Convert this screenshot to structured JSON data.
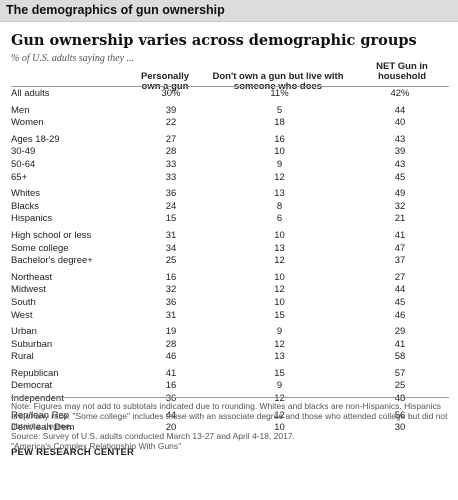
{
  "band_title": "The demographics of gun ownership",
  "headline": "Gun ownership varies across demographic groups",
  "subtitle": "% of U.S. adults saying they ...",
  "chart_data": {
    "type": "table",
    "columns": [
      "Personally own a gun",
      "Don't own a gun but live with someone who does",
      "NET Gun in household"
    ],
    "groups": [
      {
        "rows": [
          {
            "label": "All adults",
            "values": [
              "30%",
              "11%",
              "42%"
            ]
          }
        ]
      },
      {
        "rows": [
          {
            "label": "Men",
            "values": [
              "39",
              "5",
              "44"
            ]
          },
          {
            "label": "Women",
            "values": [
              "22",
              "18",
              "40"
            ]
          }
        ]
      },
      {
        "rows": [
          {
            "label": "Ages 18-29",
            "values": [
              "27",
              "16",
              "43"
            ]
          },
          {
            "label": "30-49",
            "values": [
              "28",
              "10",
              "39"
            ]
          },
          {
            "label": "50-64",
            "values": [
              "33",
              "9",
              "43"
            ]
          },
          {
            "label": "65+",
            "values": [
              "33",
              "12",
              "45"
            ]
          }
        ]
      },
      {
        "rows": [
          {
            "label": "Whites",
            "values": [
              "36",
              "13",
              "49"
            ]
          },
          {
            "label": "Blacks",
            "values": [
              "24",
              "8",
              "32"
            ]
          },
          {
            "label": "Hispanics",
            "values": [
              "15",
              "6",
              "21"
            ]
          }
        ]
      },
      {
        "rows": [
          {
            "label": "High school or less",
            "values": [
              "31",
              "10",
              "41"
            ]
          },
          {
            "label": "Some college",
            "values": [
              "34",
              "13",
              "47"
            ]
          },
          {
            "label": "Bachelor's degree+",
            "values": [
              "25",
              "12",
              "37"
            ]
          }
        ]
      },
      {
        "rows": [
          {
            "label": "Northeast",
            "values": [
              "16",
              "10",
              "27"
            ]
          },
          {
            "label": "Midwest",
            "values": [
              "32",
              "12",
              "44"
            ]
          },
          {
            "label": "South",
            "values": [
              "36",
              "10",
              "45"
            ]
          },
          {
            "label": "West",
            "values": [
              "31",
              "15",
              "46"
            ]
          }
        ]
      },
      {
        "rows": [
          {
            "label": "Urban",
            "values": [
              "19",
              "9",
              "29"
            ]
          },
          {
            "label": "Suburban",
            "values": [
              "28",
              "12",
              "41"
            ]
          },
          {
            "label": "Rural",
            "values": [
              "46",
              "13",
              "58"
            ]
          }
        ]
      },
      {
        "rows": [
          {
            "label": "Republican",
            "values": [
              "41",
              "15",
              "57"
            ]
          },
          {
            "label": "Democrat",
            "values": [
              "16",
              "9",
              "25"
            ]
          },
          {
            "label": "Independent",
            "values": [
              "36",
              "12",
              "48"
            ]
          }
        ]
      },
      {
        "rows": [
          {
            "label": "Rep/lean Rep",
            "values": [
              "44",
              "12",
              "56"
            ]
          },
          {
            "label": "Dem/lean Dem",
            "values": [
              "20",
              "10",
              "30"
            ]
          }
        ]
      }
    ]
  },
  "notes": [
    "Note: Figures may not add to subtotals indicated due to rounding. Whites and blacks are non-Hispanics. Hispanics are of any race. \"Some college\" includes those with an associate degree and those who attended college but did not obtain a degree.",
    "Source: Survey of U.S. adults conducted March 13-27 and April 4-18, 2017.",
    "\"America's Complex Relationship With Guns\""
  ],
  "brand": "PEW RESEARCH CENTER"
}
